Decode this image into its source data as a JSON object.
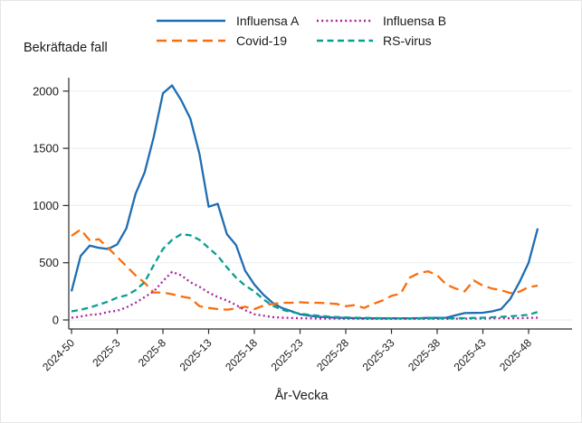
{
  "chart_data": {
    "type": "line",
    "title": "Bekräftade fall",
    "xlabel": "År-Vecka",
    "ylabel": "Bekräftade fall",
    "grid": "horizontal",
    "legend_position": "top",
    "ylim": [
      0,
      2100
    ],
    "y_ticks": [
      0,
      500,
      1000,
      1500,
      2000
    ],
    "x_ticks_shown": [
      "2024-50",
      "2025-3",
      "2025-8",
      "2025-13",
      "2025-18",
      "2025-23",
      "2025-28",
      "2025-33",
      "2025-38",
      "2025-43",
      "2025-48"
    ],
    "x": [
      "2024-50",
      "2024-51",
      "2024-52",
      "2025-1",
      "2025-2",
      "2025-3",
      "2025-4",
      "2025-5",
      "2025-6",
      "2025-7",
      "2025-8",
      "2025-9",
      "2025-10",
      "2025-11",
      "2025-12",
      "2025-13",
      "2025-14",
      "2025-15",
      "2025-16",
      "2025-17",
      "2025-18",
      "2025-19",
      "2025-20",
      "2025-21",
      "2025-22",
      "2025-23",
      "2025-24",
      "2025-25",
      "2025-26",
      "2025-27",
      "2025-28",
      "2025-29",
      "2025-30",
      "2025-31",
      "2025-32",
      "2025-33",
      "2025-34",
      "2025-35",
      "2025-36",
      "2025-37",
      "2025-38",
      "2025-39",
      "2025-40",
      "2025-41",
      "2025-42",
      "2025-43",
      "2025-44",
      "2025-45",
      "2025-46",
      "2025-47",
      "2025-48",
      "2025-49"
    ],
    "series": [
      {
        "name": "Influensa A",
        "color": "#1f6db3",
        "dash": "solid",
        "values": [
          250,
          560,
          650,
          630,
          620,
          660,
          800,
          1100,
          1290,
          1600,
          1980,
          2050,
          1920,
          1760,
          1450,
          990,
          1015,
          750,
          655,
          430,
          310,
          220,
          150,
          105,
          78,
          50,
          38,
          28,
          24,
          20,
          18,
          16,
          15,
          14,
          14,
          14,
          15,
          15,
          16,
          18,
          18,
          20,
          40,
          60,
          62,
          63,
          75,
          95,
          185,
          330,
          500,
          800
        ]
      },
      {
        "name": "Covid-19",
        "color": "#f96e0d",
        "dash": "long-dash",
        "values": [
          735,
          790,
          695,
          705,
          630,
          550,
          470,
          390,
          325,
          240,
          240,
          225,
          205,
          190,
          120,
          105,
          95,
          90,
          100,
          115,
          95,
          125,
          140,
          150,
          150,
          155,
          150,
          150,
          145,
          140,
          120,
          130,
          105,
          140,
          170,
          210,
          230,
          370,
          410,
          425,
          390,
          310,
          275,
          250,
          345,
          300,
          275,
          260,
          235,
          247,
          287,
          300
        ]
      },
      {
        "name": "Influensa B",
        "color": "#a8249c",
        "dash": "dot",
        "values": [
          20,
          30,
          45,
          50,
          70,
          80,
          110,
          150,
          200,
          250,
          340,
          420,
          390,
          330,
          290,
          240,
          200,
          170,
          130,
          85,
          50,
          37,
          25,
          20,
          18,
          15,
          14,
          13,
          12,
          12,
          11,
          11,
          10,
          10,
          10,
          10,
          10,
          10,
          10,
          10,
          10,
          10,
          11,
          12,
          12,
          13,
          14,
          15,
          15,
          16,
          18,
          20
        ]
      },
      {
        "name": "RS-virus",
        "color": "#0a9e90",
        "dash": "dash",
        "values": [
          75,
          90,
          108,
          134,
          160,
          195,
          215,
          260,
          330,
          480,
          620,
          700,
          750,
          740,
          700,
          630,
          560,
          460,
          370,
          300,
          250,
          180,
          125,
          90,
          70,
          55,
          45,
          37,
          30,
          25,
          22,
          20,
          18,
          17,
          16,
          15,
          15,
          14,
          14,
          14,
          14,
          15,
          15,
          16,
          18,
          20,
          24,
          28,
          32,
          38,
          45,
          70
        ]
      }
    ]
  },
  "colors": {
    "grid": "#e9f1f0",
    "axis": "#2b2b2b",
    "tick": "#2b2b2b",
    "text": "#1a1a1a"
  }
}
